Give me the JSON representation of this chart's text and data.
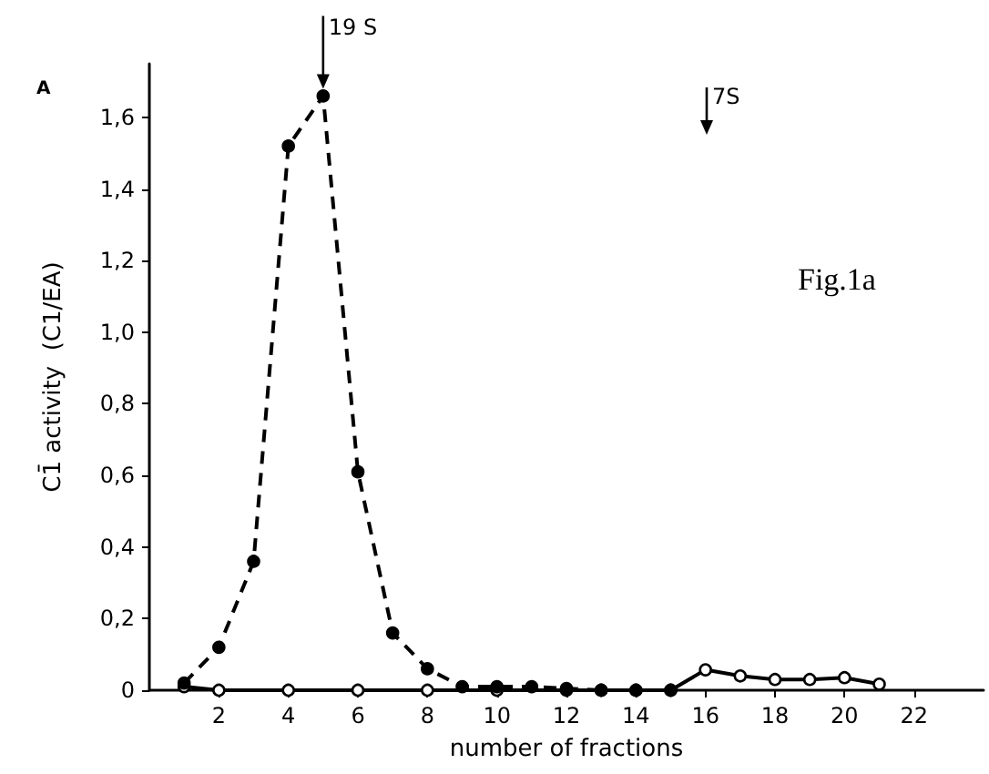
{
  "chart_data": {
    "type": "line",
    "xlabel": "number of fractions",
    "ylabel": "C1̄ activity  (C1/EA)",
    "xlim": [
      0,
      24
    ],
    "xticks": [
      2,
      4,
      6,
      8,
      10,
      12,
      14,
      16,
      18,
      20,
      22
    ],
    "ylim": [
      0,
      1.75
    ],
    "yticks": [
      0,
      {
        "value": 0.2,
        "label": "0,2"
      },
      {
        "value": 0.4,
        "label": "0,4"
      },
      {
        "value": 0.6,
        "label": "0,6"
      },
      {
        "value": 0.8,
        "label": "0,8"
      },
      {
        "value": 1.0,
        "label": "1,0"
      },
      {
        "value": 1.2,
        "label": "1,2"
      },
      {
        "value": 1.4,
        "label": "1,4"
      },
      {
        "value": 1.6,
        "label": "1,6"
      }
    ],
    "grid": false,
    "marker": "circle",
    "series": [
      {
        "color": "#000000",
        "line_style": "dashed",
        "x": [
          1,
          2,
          3,
          4,
          5,
          6,
          7,
          8,
          9,
          10,
          11,
          12,
          13,
          14,
          15
        ],
        "values": [
          0.02,
          0.12,
          0.36,
          1.52,
          1.66,
          0.61,
          0.16,
          0.06,
          0.01,
          0.01,
          0.01,
          0.005,
          0,
          0,
          0
        ]
      },
      {
        "color": "#000000",
        "line_style": "solid",
        "x": [
          1,
          2,
          4,
          6,
          8,
          10,
          12,
          13,
          14,
          15,
          16,
          17,
          18,
          19,
          20,
          21
        ],
        "values": [
          0.01,
          0,
          0,
          0,
          0,
          0,
          0,
          0,
          0,
          0,
          0.057,
          0.04,
          0.03,
          0.03,
          0.035,
          0.017
        ]
      }
    ],
    "annotations": [
      {
        "text": "19 S",
        "x": 5,
        "y": 1.68
      },
      "7S",
      "A",
      "Fig.1a"
    ]
  }
}
